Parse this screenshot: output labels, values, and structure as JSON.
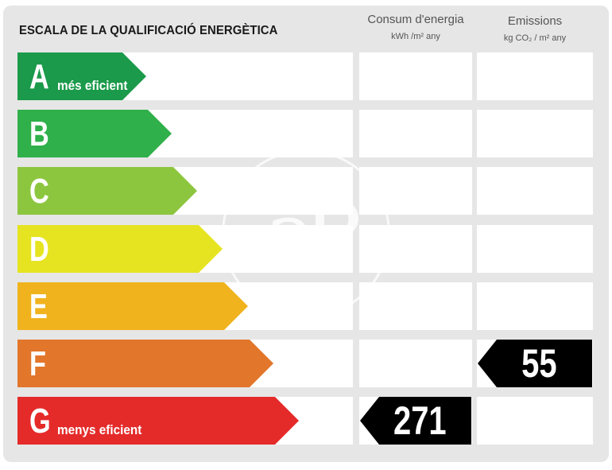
{
  "header": {
    "title": "ESCALA DE LA QUALIFICACIÓ ENERGÈTICA",
    "consumption": {
      "label": "Consum d'energia",
      "unit": "kWh /m² any"
    },
    "emissions": {
      "label": "Emissions",
      "unit": "kg CO₂ / m² any"
    }
  },
  "scale": [
    {
      "letter": "A",
      "sublabel": "més eficient",
      "color": "#1a9a4a"
    },
    {
      "letter": "B",
      "sublabel": "",
      "color": "#2fb04a"
    },
    {
      "letter": "C",
      "sublabel": "",
      "color": "#8cc63f"
    },
    {
      "letter": "D",
      "sublabel": "",
      "color": "#e6e420"
    },
    {
      "letter": "E",
      "sublabel": "",
      "color": "#f0b31e"
    },
    {
      "letter": "F",
      "sublabel": "",
      "color": "#e2762a"
    },
    {
      "letter": "G",
      "sublabel": "menys eficient",
      "color": "#e42b2a"
    }
  ],
  "rating": {
    "consumption": {
      "value": "271",
      "class": "G"
    },
    "emissions": {
      "value": "55",
      "class": "F"
    }
  },
  "watermark": {
    "text": "aP"
  },
  "colors": {
    "panel": "#e6e6e6",
    "indicator": "#000000"
  }
}
